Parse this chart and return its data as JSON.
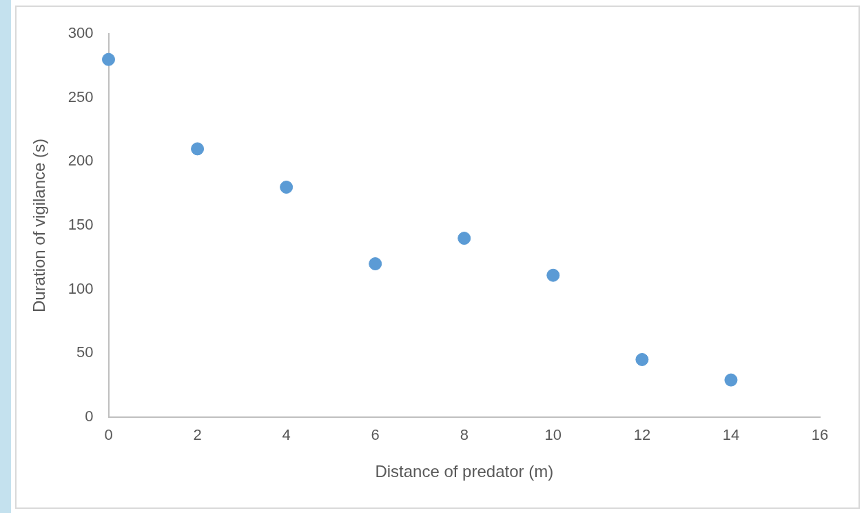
{
  "chart_data": {
    "type": "scatter",
    "xlabel": "Distance of predator (m)",
    "ylabel": "Duration of vigilance (s)",
    "x": [
      0,
      2,
      4,
      6,
      8,
      10,
      12,
      14
    ],
    "series": [
      {
        "color": "#5b9bd5",
        "values": [
          280,
          210,
          180,
          120,
          140,
          111,
          45,
          29
        ]
      }
    ],
    "xlim": [
      0,
      16
    ],
    "xticks": [
      0,
      2,
      4,
      6,
      8,
      10,
      12,
      14,
      16
    ],
    "ylim": [
      0,
      300
    ],
    "yticks": [
      0,
      50,
      100,
      150,
      200,
      250,
      300
    ],
    "grid": false,
    "legend": false,
    "marker": "circle"
  }
}
